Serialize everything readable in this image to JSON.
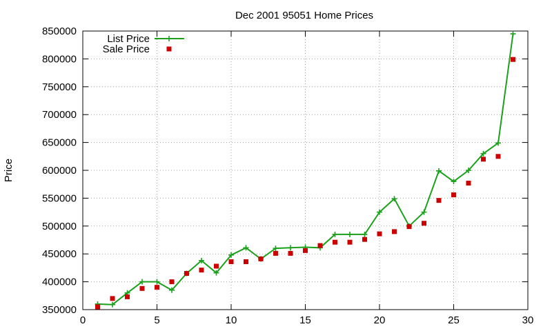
{
  "chart_data": {
    "type": "line",
    "title": "Dec 2001 95051 Home Prices",
    "xlabel": "",
    "ylabel": "Price",
    "xlim": [
      0,
      30
    ],
    "ylim": [
      350000,
      850000
    ],
    "x_ticks": [
      0,
      5,
      10,
      15,
      20,
      25,
      30
    ],
    "y_ticks": [
      350000,
      400000,
      450000,
      500000,
      550000,
      600000,
      650000,
      700000,
      750000,
      800000,
      850000
    ],
    "grid": true,
    "legend_position": "top-left",
    "x": [
      1,
      2,
      3,
      4,
      5,
      6,
      7,
      8,
      9,
      10,
      11,
      12,
      13,
      14,
      15,
      16,
      17,
      18,
      19,
      20,
      21,
      22,
      23,
      24,
      25,
      26,
      27,
      28,
      29
    ],
    "series": [
      {
        "name": "List Price",
        "style": "linespoints",
        "color": "#1aa01a",
        "values": [
          360000,
          359000,
          380000,
          400000,
          400000,
          385000,
          415000,
          438000,
          416000,
          448000,
          461000,
          441000,
          460000,
          461000,
          462000,
          461000,
          485000,
          485000,
          485000,
          525000,
          549000,
          500000,
          525000,
          599000,
          580000,
          600000,
          630000,
          649000,
          845000
        ]
      },
      {
        "name": "Sale Price",
        "style": "points",
        "color": "#cc0000",
        "values": [
          355000,
          370000,
          373000,
          388000,
          390000,
          400000,
          415000,
          421000,
          428000,
          436000,
          436000,
          441000,
          451000,
          451000,
          456000,
          465000,
          471000,
          471000,
          476000,
          486000,
          490000,
          499000,
          505000,
          546000,
          556000,
          577000,
          620000,
          625000,
          799000
        ]
      }
    ]
  }
}
